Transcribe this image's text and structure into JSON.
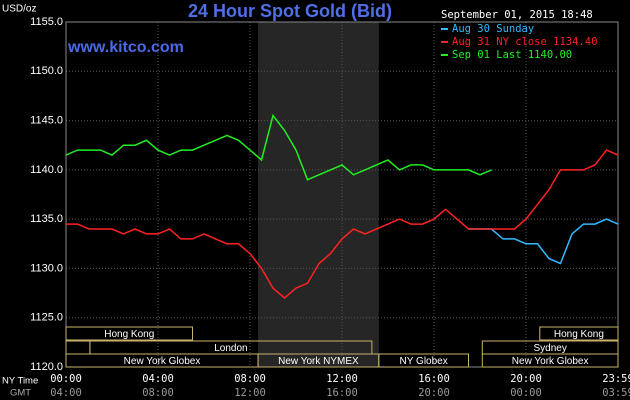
{
  "chart_data": {
    "type": "line",
    "title": "24 Hour Spot Gold (Bid)",
    "site": "www.kitco.com",
    "y_label": "USD/oz",
    "timestamp": "September 01, 2015 18:48",
    "x_row_label": "NY Time",
    "x2_row_label": "GMT",
    "x": [
      0,
      0.5,
      1,
      1.5,
      2,
      2.5,
      3,
      3.5,
      4,
      4.5,
      5,
      5.5,
      6,
      6.5,
      7,
      7.5,
      8,
      8.5,
      9,
      9.5,
      10,
      10.5,
      11,
      11.5,
      12,
      12.5,
      13,
      13.5,
      14,
      14.5,
      15,
      15.5,
      16,
      16.5,
      17,
      17.5,
      18,
      18.5,
      19,
      19.5,
      20,
      20.5,
      21,
      21.5,
      22,
      22.5,
      23,
      23.5,
      24
    ],
    "series": [
      {
        "name": "Aug 30 Sunday",
        "color": "#33bbff",
        "values": [
          null,
          null,
          null,
          null,
          null,
          null,
          null,
          null,
          null,
          null,
          null,
          null,
          null,
          null,
          null,
          null,
          null,
          null,
          null,
          null,
          null,
          null,
          null,
          null,
          null,
          null,
          null,
          null,
          null,
          null,
          null,
          null,
          null,
          null,
          null,
          1134,
          1134,
          1134,
          1133,
          1133,
          1132.5,
          1132.5,
          1131,
          1130.5,
          1133.5,
          1134.5,
          1134.5,
          1135,
          1134.5
        ]
      },
      {
        "name": "Aug 31 NY close 1134.40",
        "color": "#ff2222",
        "values": [
          1134.5,
          1134.5,
          1134,
          1134,
          1134,
          1133.5,
          1134,
          1133.5,
          1133.5,
          1134,
          1133,
          1133,
          1133.5,
          1133,
          1132.5,
          1132.5,
          1131.5,
          1130,
          1128,
          1127,
          1128,
          1128.5,
          1130.5,
          1131.5,
          1133,
          1134,
          1133.5,
          1134,
          1134.5,
          1135,
          1134.5,
          1134.5,
          1135,
          1136,
          1135,
          1134,
          1134,
          1134,
          1134,
          1134,
          1135,
          1136.5,
          1138,
          1140,
          1140,
          1140,
          1140.5,
          1142,
          1141.5
        ]
      },
      {
        "name": "Sep 01 Last 1140.00",
        "color": "#22ee22",
        "values": [
          1141.5,
          1142,
          1142,
          1142,
          1141.5,
          1142.5,
          1142.5,
          1143,
          1142,
          1141.5,
          1142,
          1142,
          1142.5,
          1143,
          1143.5,
          1143,
          1142,
          1141,
          1145.5,
          1144,
          1142,
          1139,
          1139.5,
          1140,
          1140.5,
          1139.5,
          1140,
          1140.5,
          1141,
          1140,
          1140.5,
          1140.5,
          1140,
          1140,
          1140,
          1140,
          1139.5,
          1140,
          null,
          null,
          null,
          null,
          null,
          null,
          null,
          null,
          null,
          null,
          null
        ]
      }
    ],
    "xlim": [
      0,
      24
    ],
    "ylim": [
      1120,
      1155
    ],
    "yticks": [
      {
        "value": 1120,
        "label": "1120.0"
      },
      {
        "value": 1125,
        "label": "1125.0"
      },
      {
        "value": 1130,
        "label": "1130.0"
      },
      {
        "value": 1135,
        "label": "1135.0"
      },
      {
        "value": 1140,
        "label": "1140.0"
      },
      {
        "value": 1145,
        "label": "1145.0"
      },
      {
        "value": 1150,
        "label": "1150.0"
      },
      {
        "value": 1155,
        "label": "1155.0"
      }
    ],
    "xticks": [
      {
        "value": 0,
        "label": "00:00"
      },
      {
        "value": 4,
        "label": "04:00"
      },
      {
        "value": 8,
        "label": "08:00"
      },
      {
        "value": 12,
        "label": "12:00"
      },
      {
        "value": 16,
        "label": "16:00"
      },
      {
        "value": 20,
        "label": "20:00"
      },
      {
        "value": 24,
        "label": "23:59"
      }
    ],
    "x2ticks": [
      {
        "value": 0,
        "label": "04:00"
      },
      {
        "value": 4,
        "label": "08:00"
      },
      {
        "value": 8,
        "label": "12:00"
      },
      {
        "value": 12,
        "label": "16:00"
      },
      {
        "value": 16,
        "label": "20:00"
      },
      {
        "value": 20,
        "label": "00:00"
      },
      {
        "value": 24,
        "label": "03:59"
      }
    ],
    "grid": true,
    "shaded_band": {
      "from": 8.35,
      "to": 13.6
    },
    "sessions": [
      {
        "label": "Hong Kong",
        "row": 0,
        "start": 0,
        "end": 5.5
      },
      {
        "label": null,
        "row": 1,
        "start": 0,
        "end": 1.04
      },
      {
        "label": "London",
        "row": 1,
        "start": 1.04,
        "end": 13.3
      },
      {
        "label": "New York Globex",
        "row": 2,
        "start": 0,
        "end": 8.35
      },
      {
        "label": "NY Globex",
        "row": 2,
        "start": 13.6,
        "end": 17.5
      },
      {
        "label": "New York NYMEX",
        "row": 2,
        "start": 8.35,
        "end": 13.6
      },
      {
        "label": "Hong Kong",
        "row": 0,
        "start": 20.6,
        "end": 24
      },
      {
        "label": "Sydney",
        "row": 1,
        "start": 18.1,
        "end": 24
      },
      {
        "label": "New York Globex",
        "row": 2,
        "start": 18.1,
        "end": 24
      }
    ]
  }
}
